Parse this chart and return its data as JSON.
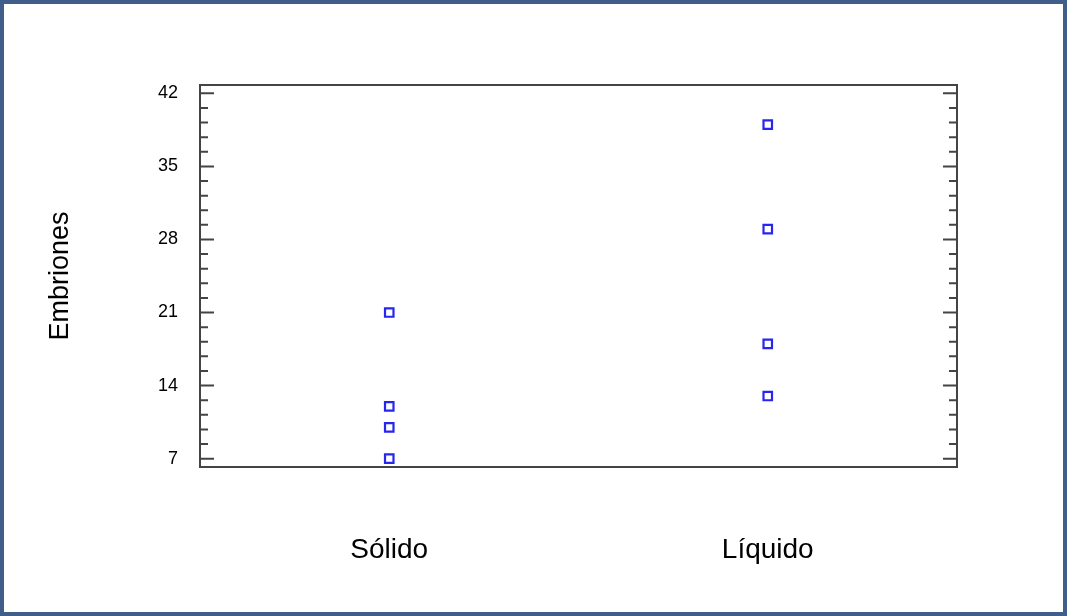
{
  "chart_data": {
    "type": "scatter",
    "ylabel": "Embriones",
    "categories": [
      "Sólido",
      "Líquido"
    ],
    "series": [
      {
        "color": "#2626f0",
        "x": [
          "Sólido",
          "Sólido",
          "Sólido",
          "Sólido",
          "Líquido",
          "Líquido",
          "Líquido",
          "Líquido"
        ],
        "values": [
          21,
          12,
          10,
          7,
          39,
          29,
          18,
          13
        ]
      }
    ],
    "ylim": [
      6.2,
      42.8
    ],
    "yticks": [
      7,
      {
        "value": 8.4,
        "label": null
      },
      {
        "value": 9.8,
        "label": null
      },
      {
        "value": 11.2,
        "label": null
      },
      {
        "value": 12.6,
        "label": null
      },
      14,
      {
        "value": 15.4,
        "label": null
      },
      {
        "value": 16.8,
        "label": null
      },
      {
        "value": 18.2,
        "label": null
      },
      {
        "value": 19.6,
        "label": null
      },
      21,
      {
        "value": 22.4,
        "label": null
      },
      {
        "value": 23.8,
        "label": null
      },
      {
        "value": 25.2,
        "label": null
      },
      {
        "value": 26.6,
        "label": null
      },
      28,
      {
        "value": 29.4,
        "label": null
      },
      {
        "value": 30.8,
        "label": null
      },
      {
        "value": 32.2,
        "label": null
      },
      {
        "value": 33.6,
        "label": null
      },
      35,
      {
        "value": 36.4,
        "label": null
      },
      {
        "value": 37.8,
        "label": null
      },
      {
        "value": 39.2,
        "label": null
      },
      {
        "value": 40.6,
        "label": null
      },
      42
    ],
    "marker": "square",
    "grid": false,
    "legend": false
  }
}
